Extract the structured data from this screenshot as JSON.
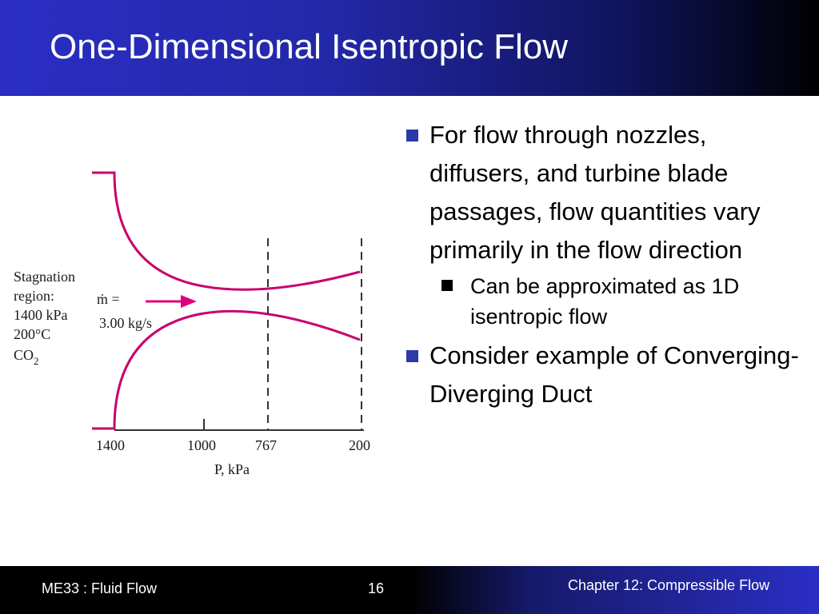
{
  "title": "One-Dimensional Isentropic Flow",
  "diagram": {
    "region_lines": [
      "Stagnation",
      "region:",
      "1400 kPa",
      "200°C"
    ],
    "gas": {
      "base": "CO",
      "subscript": "2"
    },
    "mass_flow": {
      "symbol": "ṁ =",
      "value": "3.00 kg/s"
    },
    "pressure_ticks": [
      "1400",
      "1000",
      "767",
      "200"
    ],
    "axis_label": "P, kPa",
    "duct_color": "#c8006e",
    "arrow_color": "#e0007a"
  },
  "bullets": [
    {
      "text": "For flow through nozzles, diffusers, and turbine blade passages, flow quantities vary primarily in the flow direction",
      "sub": [
        {
          "text": "Can be approximated as 1D isentropic flow"
        }
      ]
    },
    {
      "text": "Consider example of Converging-Diverging Duct",
      "sub": []
    }
  ],
  "footer": {
    "course": "ME33 :  Fluid Flow",
    "page": "16",
    "chapter": "Chapter 12: Compressible Flow"
  }
}
